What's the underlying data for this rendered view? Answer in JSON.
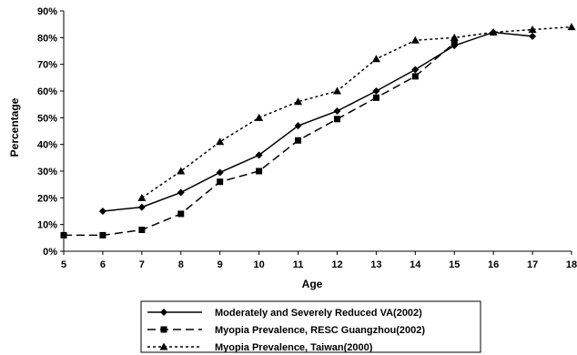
{
  "chart_data": {
    "type": "line",
    "xlabel": "Age",
    "ylabel": "Percentage",
    "xlim": [
      5,
      18
    ],
    "ylim": [
      0,
      90
    ],
    "x_ticks": [
      5,
      6,
      7,
      8,
      9,
      10,
      11,
      12,
      13,
      14,
      15,
      16,
      17,
      18
    ],
    "y_ticks": [
      "0%",
      "10%",
      "20%",
      "30%",
      "40%",
      "50%",
      "60%",
      "70%",
      "80%",
      "90%"
    ],
    "grid": false,
    "legend_position": "bottom",
    "series": [
      {
        "name": "Moderately and Severely Reduced VA(2002)",
        "marker": "diamond",
        "line_style": "solid",
        "x": [
          6,
          7,
          8,
          9,
          10,
          11,
          12,
          13,
          14,
          15,
          16,
          17
        ],
        "y": [
          15,
          16.5,
          22,
          29.5,
          36,
          47,
          52.5,
          60,
          68,
          77,
          82,
          80.5
        ]
      },
      {
        "name": "Myopia Prevalence, RESC Guangzhou(2002)",
        "marker": "square",
        "line_style": "dashed",
        "x": [
          5,
          6,
          7,
          8,
          9,
          10,
          11,
          12,
          13,
          14,
          15
        ],
        "y": [
          6,
          6,
          8,
          14,
          26,
          30,
          41.5,
          49.5,
          57.5,
          65.5,
          78
        ]
      },
      {
        "name": "Myopia Prevalence, Taiwan(2000)",
        "marker": "triangle",
        "line_style": "dotted",
        "x": [
          7,
          8,
          9,
          10,
          11,
          12,
          13,
          14,
          15,
          16,
          17,
          18
        ],
        "y": [
          20,
          30,
          41,
          50,
          56,
          60,
          72,
          79,
          80,
          82,
          83,
          84
        ]
      }
    ]
  }
}
